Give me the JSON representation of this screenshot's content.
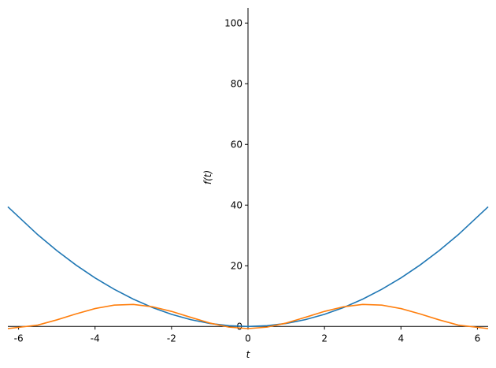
{
  "chart_data": {
    "type": "line",
    "x_label": "t",
    "y_label": "f(t)",
    "x": [
      -6.28,
      -5.5,
      -5,
      -4.5,
      -4,
      -3.5,
      -3,
      -2.5,
      -2,
      -1.5,
      -1,
      -0.5,
      0,
      0.5,
      1,
      1.5,
      2,
      2.5,
      3,
      3.5,
      4,
      4.5,
      5,
      5.5,
      6.28
    ],
    "series": [
      {
        "color": "#1f77b4",
        "values": [
          39.44,
          30.25,
          25,
          20.25,
          16,
          12.25,
          9,
          6.25,
          4,
          2.25,
          1,
          0.25,
          0,
          0.25,
          1,
          2.25,
          4,
          6.25,
          9,
          12.25,
          16,
          20.25,
          25,
          30.25,
          39.44
        ]
      },
      {
        "color": "#ff7f0e",
        "values": [
          -0.71,
          0.45,
          2.16,
          4.13,
          5.9,
          7.04,
          7.25,
          6.49,
          4.96,
          3.01,
          1.13,
          -0.22,
          -0.71,
          -0.22,
          1.13,
          3.01,
          4.96,
          6.49,
          7.25,
          7.04,
          5.9,
          4.13,
          2.16,
          0.45,
          -0.71
        ]
      }
    ],
    "xlim": [
      -6.28,
      6.28
    ],
    "ylim": [
      -0.71,
      105
    ],
    "xticks": [
      -6,
      -4,
      -2,
      0,
      2,
      4,
      6
    ],
    "yticks": [
      0,
      20,
      40,
      60,
      80,
      100
    ]
  }
}
